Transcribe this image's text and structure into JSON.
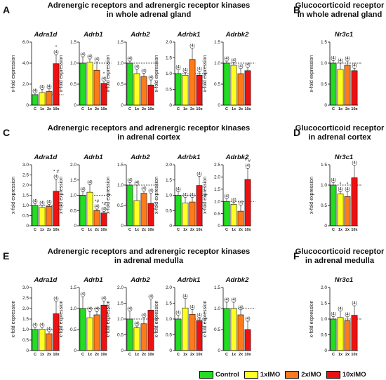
{
  "figure": {
    "rows": [
      {
        "left_letter": "A",
        "left_heading": "Adrenergic receptors and adrenergic receptor kinases\nin whole adrenal gland",
        "right_letter": "B",
        "right_heading": "Glucocorticoid receptor\nin whole adrenal gland"
      },
      {
        "left_letter": "C",
        "left_heading": "Adrenergic receptors and adrenergic receptor kinases\nin adrenal cortex",
        "right_letter": "D",
        "right_heading": "Glucocorticoid receptor\nin adrenal cortex"
      },
      {
        "left_letter": "E",
        "left_heading": "Adrenergic receptors and adrenergic receptor kinases\nin adrenal medulla",
        "right_letter": "F",
        "right_heading": "Glucocorticoid receptor\nin adrenal medulla"
      }
    ],
    "legend": [
      {
        "label": "Control",
        "color": "#22dd22"
      },
      {
        "label": "1xIMO",
        "color": "#ffff22"
      },
      {
        "label": "2xIMO",
        "color": "#ff7a1a"
      },
      {
        "label": "10xIMO",
        "color": "#ee1111"
      }
    ]
  },
  "chart_data": [
    {
      "type": "bar",
      "panel": "A",
      "title": "Adra1d",
      "ylabel": "x-fold expression",
      "categories": [
        "C",
        "1x",
        "2x",
        "10x"
      ],
      "values": [
        1.0,
        1.2,
        1.3,
        3.95
      ],
      "errors": [
        0.15,
        0.3,
        0.25,
        0.85
      ],
      "n_labels": [
        "(4)",
        "(4)",
        "(4)",
        "(4)"
      ],
      "marks": [
        "",
        "",
        "",
        "*"
      ],
      "ylim": [
        0,
        6
      ],
      "yticks": [
        "0",
        "2.0",
        "4.0",
        "6.0"
      ],
      "reference_line": 1
    },
    {
      "type": "bar",
      "panel": "A",
      "title": "Adrb1",
      "ylabel": "x-fold expression",
      "categories": [
        "C",
        "1x",
        "2x",
        "10x"
      ],
      "values": [
        1.0,
        1.02,
        0.83,
        0.52
      ],
      "errors": [
        0.15,
        0.08,
        0.2,
        0.05
      ],
      "n_labels": [
        "(4)",
        "(4)",
        "(4)",
        "(4)"
      ],
      "marks": [
        "",
        "",
        "",
        "*"
      ],
      "ylim": [
        0,
        1.5
      ],
      "yticks": [
        "0",
        "0.5",
        "1.0",
        "1.5"
      ],
      "reference_line": 1
    },
    {
      "type": "bar",
      "panel": "A",
      "title": "Adrb2",
      "ylabel": "x-fold expression",
      "categories": [
        "C",
        "1x",
        "2x",
        "10x"
      ],
      "values": [
        1.0,
        0.75,
        0.68,
        0.48
      ],
      "errors": [
        0.05,
        0.1,
        0.08,
        0.12
      ],
      "n_labels": [
        "(4)",
        "(4)",
        "(4)",
        "(4)"
      ],
      "marks": [
        "",
        "",
        "",
        ""
      ],
      "ylim": [
        0,
        1.5
      ],
      "yticks": [
        "0",
        "0.5",
        "1.0",
        "1.5"
      ],
      "reference_line": 1
    },
    {
      "type": "bar",
      "panel": "A",
      "title": "Adrbk1",
      "ylabel": "x-fold expression",
      "categories": [
        "C",
        "1x",
        "2x",
        "10x"
      ],
      "values": [
        1.0,
        0.95,
        1.45,
        0.95
      ],
      "errors": [
        0.12,
        0.08,
        0.35,
        0.12
      ],
      "n_labels": [
        "(4)",
        "(4)",
        "(4)",
        "(4)"
      ],
      "marks": [
        "",
        "",
        "",
        ""
      ],
      "ylim": [
        0,
        2.0
      ],
      "yticks": [
        "0",
        "0.5",
        "1.0",
        "1.5",
        "2.0"
      ],
      "reference_line": 1
    },
    {
      "type": "bar",
      "panel": "A",
      "title": "Adrbk2",
      "ylabel": "x-fold expression",
      "categories": [
        "C",
        "1x",
        "2x",
        "10x"
      ],
      "values": [
        1.0,
        0.95,
        0.75,
        0.82
      ],
      "errors": [
        0.05,
        0.06,
        0.12,
        0.08
      ],
      "n_labels": [
        "(4)",
        "(4)",
        "(4)",
        "(4)"
      ],
      "marks": [
        "",
        "",
        "",
        ""
      ],
      "ylim": [
        0,
        1.5
      ],
      "yticks": [
        "0",
        "0.5",
        "1.0",
        "1.5"
      ],
      "reference_line": 1
    },
    {
      "type": "bar",
      "panel": "B",
      "title": "Nr3c1",
      "ylabel": "x-fold expression",
      "categories": [
        "C",
        "1x",
        "2x",
        "10x"
      ],
      "values": [
        1.0,
        0.85,
        0.95,
        0.82
      ],
      "errors": [
        0.06,
        0.15,
        0.1,
        0.06
      ],
      "n_labels": [
        "(4)",
        "(4)",
        "(4)",
        "(4)"
      ],
      "marks": [
        "",
        "",
        "",
        ""
      ],
      "ylim": [
        0,
        1.5
      ],
      "yticks": [
        "0",
        "0.5",
        "1.0",
        "1.5"
      ],
      "reference_line": 1
    },
    {
      "type": "bar",
      "panel": "C",
      "title": "Adra1d",
      "ylabel": "x-fold expression",
      "categories": [
        "C",
        "1x",
        "2x",
        "10x"
      ],
      "values": [
        1.0,
        0.9,
        0.95,
        1.7
      ],
      "errors": [
        0.08,
        0.1,
        0.1,
        0.6
      ],
      "n_labels": [
        "(4)",
        "(4)",
        "(4)",
        "(4)"
      ],
      "marks": [
        "",
        "",
        "",
        "* #"
      ],
      "ylim": [
        0,
        3.0
      ],
      "yticks": [
        "0",
        "0.5",
        "1.0",
        "1.5",
        "2.0",
        "2.5",
        "3.0"
      ],
      "reference_line": 1
    },
    {
      "type": "bar",
      "panel": "C",
      "title": "Adrb1",
      "ylabel": "x-fold expression",
      "categories": [
        "C",
        "1x",
        "2x",
        "10x"
      ],
      "values": [
        1.0,
        1.1,
        0.5,
        0.42
      ],
      "errors": [
        0.12,
        0.25,
        0.05,
        0.05
      ],
      "n_labels": [
        "(4)",
        "(4)",
        "(4)",
        "(4)"
      ],
      "marks": [
        "",
        "",
        "*#",
        "*#"
      ],
      "ylim": [
        0,
        2.0
      ],
      "yticks": [
        "0",
        "0.5",
        "1.0",
        "1.5",
        "2.0"
      ],
      "reference_line": 1
    },
    {
      "type": "bar",
      "panel": "C",
      "title": "Adrb2",
      "ylabel": "x-fold expression",
      "categories": [
        "C",
        "1x",
        "2x",
        "10x"
      ],
      "values": [
        1.0,
        0.62,
        0.8,
        0.55
      ],
      "errors": [
        0.06,
        0.38,
        0.05,
        0.25
      ],
      "n_labels": [
        "(4)",
        "(4)",
        "(4)",
        "(4)"
      ],
      "marks": [
        "",
        "",
        "",
        ""
      ],
      "ylim": [
        0,
        1.5
      ],
      "yticks": [
        "0",
        "0.5",
        "1.0",
        "1.5"
      ],
      "reference_line": 1
    },
    {
      "type": "bar",
      "panel": "C",
      "title": "Adrbk1",
      "ylabel": "x-fold expression",
      "categories": [
        "C",
        "1x",
        "2x",
        "10x"
      ],
      "values": [
        1.0,
        0.75,
        0.78,
        1.32
      ],
      "errors": [
        0.12,
        0.18,
        0.15,
        0.3
      ],
      "n_labels": [
        "(4)",
        "(4)",
        "(4)",
        "(4)"
      ],
      "marks": [
        "",
        "",
        "",
        ""
      ],
      "ylim": [
        0,
        2.0
      ],
      "yticks": [
        "0",
        "0.5",
        "1.0",
        "1.5",
        "2.0"
      ],
      "reference_line": 1
    },
    {
      "type": "bar",
      "panel": "C",
      "title": "Adrbk2",
      "ylabel": "x-fold expression",
      "categories": [
        "C",
        "1x",
        "2x",
        "10x"
      ],
      "values": [
        1.0,
        0.88,
        0.6,
        1.9
      ],
      "errors": [
        0.1,
        0.08,
        0.25,
        0.45
      ],
      "n_labels": [
        "(4)",
        "(4)",
        "(4)",
        "(4)"
      ],
      "marks": [
        "",
        "",
        "",
        "* #"
      ],
      "ylim": [
        0,
        2.5
      ],
      "yticks": [
        "0",
        "0.5",
        "1.0",
        "1.5",
        "2.0",
        "2.5"
      ],
      "reference_line": 1
    },
    {
      "type": "bar",
      "panel": "D",
      "title": "Nr3c1",
      "ylabel": "x-fold expression",
      "categories": [
        "C",
        "1x",
        "2x",
        "10x"
      ],
      "values": [
        1.0,
        0.78,
        0.72,
        1.18
      ],
      "errors": [
        0.06,
        0.06,
        0.12,
        0.3
      ],
      "n_labels": [
        "(4)",
        "(4)",
        "(4)",
        "(4)"
      ],
      "marks": [
        "",
        "*",
        "*",
        ""
      ],
      "ylim": [
        0,
        1.5
      ],
      "yticks": [
        "0",
        "0.5",
        "1.0",
        "1.5"
      ],
      "reference_line": 1
    },
    {
      "type": "bar",
      "panel": "E",
      "title": "Adra1d",
      "ylabel": "x-fold expression",
      "categories": [
        "C",
        "1x",
        "2x",
        "10x"
      ],
      "values": [
        1.0,
        1.02,
        0.8,
        1.75
      ],
      "errors": [
        0.1,
        0.08,
        0.1,
        0.6
      ],
      "n_labels": [
        "(4)",
        "(4)",
        "(4)",
        "(4)"
      ],
      "marks": [
        "",
        "",
        "",
        ""
      ],
      "ylim": [
        0,
        3.0
      ],
      "yticks": [
        "0",
        "0.5",
        "1.0",
        "1.5",
        "2.0",
        "2.5",
        "3.0"
      ],
      "reference_line": 1
    },
    {
      "type": "bar",
      "panel": "E",
      "title": "Adrb1",
      "ylabel": "x-fold expression",
      "categories": [
        "C",
        "1x",
        "2x",
        "10x"
      ],
      "values": [
        1.0,
        0.78,
        0.85,
        1.08
      ],
      "errors": [
        0.28,
        0.15,
        0.08,
        0.1
      ],
      "n_labels": [
        "(4)",
        "(4)",
        "(4)",
        "(4)"
      ],
      "marks": [
        "",
        "",
        "",
        ""
      ],
      "ylim": [
        0,
        1.5
      ],
      "yticks": [
        "0",
        "0.5",
        "1.0",
        "1.5"
      ],
      "reference_line": 1
    },
    {
      "type": "bar",
      "panel": "E",
      "title": "Adrb2",
      "ylabel": "x-fold expression",
      "categories": [
        "C",
        "1x",
        "2x",
        "10x"
      ],
      "values": [
        1.0,
        0.72,
        0.85,
        1.28
      ],
      "errors": [
        0.25,
        0.06,
        0.2,
        0.35
      ],
      "n_labels": [
        "(4)",
        "(4)",
        "(4)",
        "(4)"
      ],
      "marks": [
        "",
        "",
        "",
        ""
      ],
      "ylim": [
        0,
        2.0
      ],
      "yticks": [
        "0",
        "0.5",
        "1.0",
        "1.5",
        "2.0"
      ],
      "reference_line": 1
    },
    {
      "type": "bar",
      "panel": "E",
      "title": "Adrbk1",
      "ylabel": "x-fold expression",
      "categories": [
        "C",
        "1x",
        "2x",
        "10x"
      ],
      "values": [
        1.0,
        1.35,
        1.15,
        0.95
      ],
      "errors": [
        0.12,
        0.3,
        0.15,
        0.1
      ],
      "n_labels": [
        "(4)",
        "(4)",
        "(4)",
        "(4)"
      ],
      "marks": [
        "",
        "",
        "",
        ""
      ],
      "ylim": [
        0,
        2.0
      ],
      "yticks": [
        "0",
        "0.5",
        "1.0",
        "1.5",
        "2.0"
      ],
      "reference_line": 1
    },
    {
      "type": "bar",
      "panel": "E",
      "title": "Adrbk2",
      "ylabel": "x-fold expression",
      "categories": [
        "C",
        "1x",
        "2x",
        "10x"
      ],
      "values": [
        1.0,
        1.0,
        0.85,
        0.5
      ],
      "errors": [
        0.15,
        0.15,
        0.12,
        0.2
      ],
      "n_labels": [
        "(4)",
        "(4)",
        "(4)",
        "(4)"
      ],
      "marks": [
        "",
        "",
        "",
        ""
      ],
      "ylim": [
        0,
        1.5
      ],
      "yticks": [
        "0",
        "0.5",
        "1.0",
        "1.5"
      ],
      "reference_line": 1
    },
    {
      "type": "bar",
      "panel": "F",
      "title": "Nr3c1",
      "ylabel": "x-fold expression",
      "categories": [
        "C",
        "1x",
        "2x",
        "10x"
      ],
      "values": [
        1.0,
        1.05,
        0.95,
        1.12
      ],
      "errors": [
        0.08,
        0.2,
        0.12,
        0.3
      ],
      "n_labels": [
        "(4)",
        "(4)",
        "(4)",
        "(4)"
      ],
      "marks": [
        "",
        "",
        "",
        ""
      ],
      "ylim": [
        0,
        2.0
      ],
      "yticks": [
        "0",
        "0.5",
        "1.0",
        "1.5",
        "2.0"
      ],
      "reference_line": 1
    }
  ]
}
